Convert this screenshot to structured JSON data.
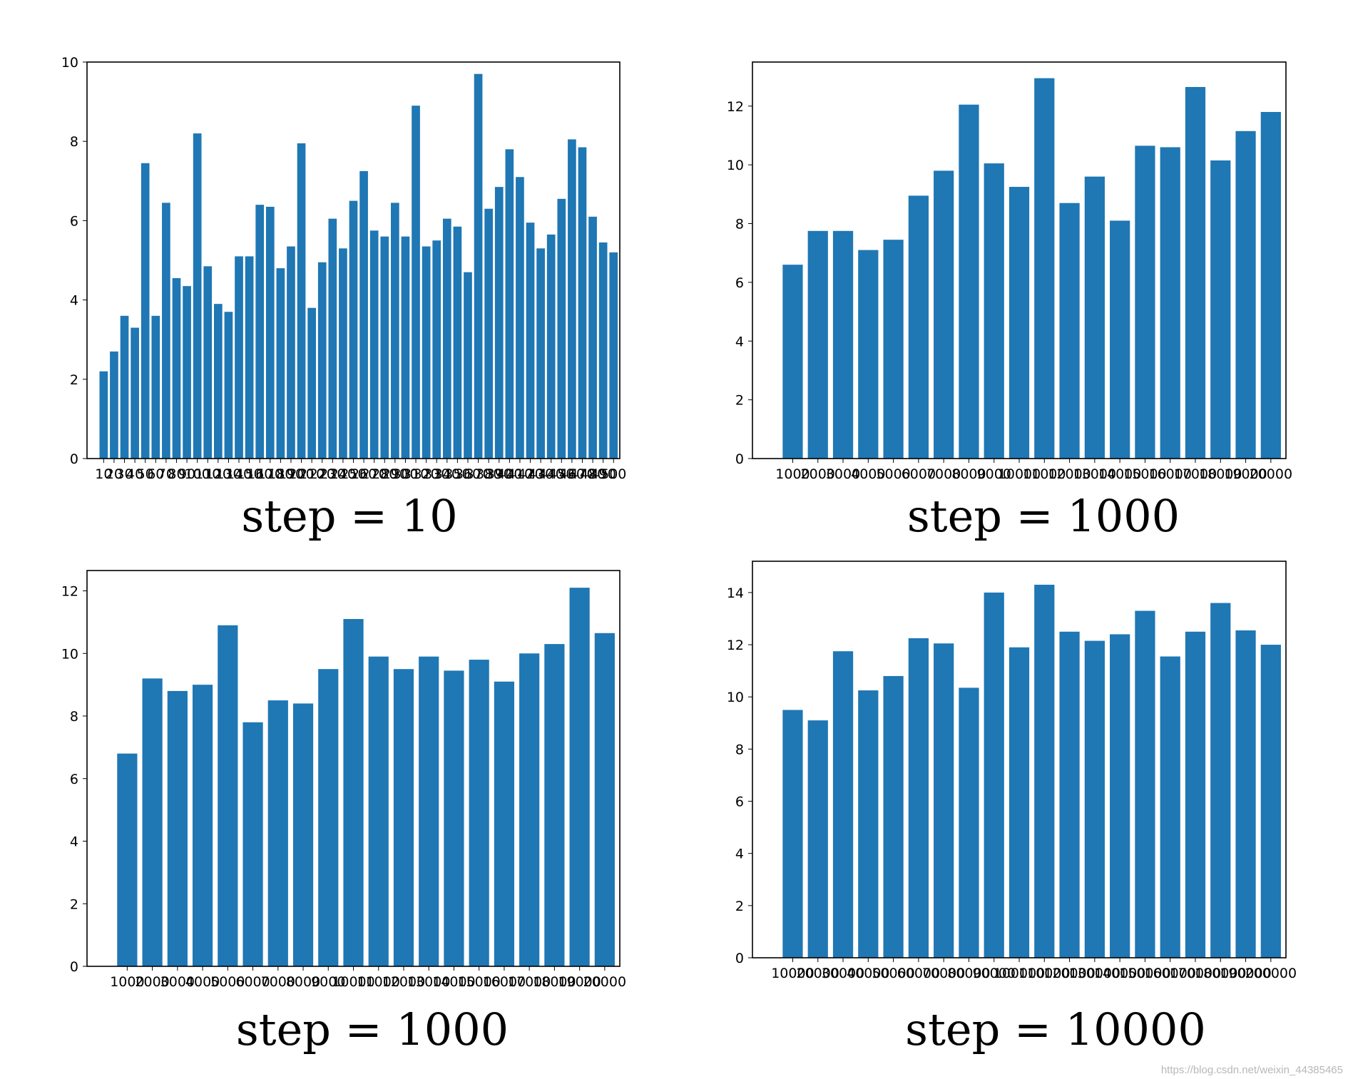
{
  "bar_color": "#1f77b4",
  "watermark": "https://blog.csdn.net/weixin_44385465",
  "chart_data": [
    {
      "type": "bar",
      "caption": "step = 10",
      "ylim": [
        0,
        10
      ],
      "yticks": [
        0,
        2,
        4,
        6,
        8,
        10
      ],
      "categories": [
        "10",
        "20",
        "30",
        "40",
        "50",
        "60",
        "70",
        "80",
        "90",
        "100",
        "110",
        "120",
        "130",
        "140",
        "150",
        "160",
        "170",
        "180",
        "190",
        "200",
        "210",
        "220",
        "230",
        "240",
        "250",
        "260",
        "270",
        "280",
        "290",
        "300",
        "310",
        "320",
        "330",
        "340",
        "350",
        "360",
        "370",
        "380",
        "390",
        "400",
        "410",
        "420",
        "430",
        "440",
        "450",
        "460",
        "470",
        "480",
        "490",
        "500"
      ],
      "values": [
        2.2,
        2.7,
        3.6,
        3.3,
        7.45,
        3.6,
        6.45,
        4.55,
        4.35,
        8.2,
        4.85,
        3.9,
        3.7,
        5.1,
        5.1,
        6.4,
        6.35,
        4.8,
        5.35,
        7.95,
        3.8,
        4.95,
        6.05,
        5.3,
        6.5,
        7.25,
        5.75,
        5.6,
        6.45,
        5.6,
        8.9,
        5.35,
        5.5,
        6.05,
        5.85,
        4.7,
        9.7,
        6.3,
        6.85,
        7.8,
        7.1,
        5.95,
        5.3,
        5.65,
        6.55,
        8.05,
        7.85,
        6.1,
        5.45,
        5.2
      ]
    },
    {
      "type": "bar",
      "caption": "step = 1000",
      "ylim": [
        0,
        13.5
      ],
      "yticks": [
        0,
        2,
        4,
        6,
        8,
        10,
        12
      ],
      "categories": [
        "1000",
        "2000",
        "3000",
        "4000",
        "5000",
        "6000",
        "7000",
        "8000",
        "9000",
        "10000",
        "11000",
        "12000",
        "13000",
        "14000",
        "15000",
        "16000",
        "17000",
        "18000",
        "19000",
        "20000"
      ],
      "values": [
        6.6,
        7.75,
        7.75,
        7.1,
        7.45,
        8.95,
        9.8,
        12.05,
        10.05,
        9.25,
        12.95,
        8.7,
        9.6,
        8.1,
        10.65,
        10.6,
        12.65,
        10.15,
        11.15,
        11.8
      ]
    },
    {
      "type": "bar",
      "caption": "step = 1000",
      "ylim": [
        0,
        12.65
      ],
      "yticks": [
        0,
        2,
        4,
        6,
        8,
        10,
        12
      ],
      "categories": [
        "1000",
        "2000",
        "3000",
        "4000",
        "5000",
        "6000",
        "7000",
        "8000",
        "9000",
        "10000",
        "11000",
        "12000",
        "13000",
        "14000",
        "15000",
        "16000",
        "17000",
        "18000",
        "19000",
        "20000"
      ],
      "values": [
        6.8,
        9.2,
        8.8,
        9.0,
        10.9,
        7.8,
        8.5,
        8.4,
        9.5,
        11.1,
        9.9,
        9.5,
        9.9,
        9.45,
        9.8,
        9.1,
        10.0,
        10.3,
        12.1,
        10.65
      ]
    },
    {
      "type": "bar",
      "caption": "step = 10000",
      "ylim": [
        0,
        15.2
      ],
      "yticks": [
        0,
        2,
        4,
        6,
        8,
        10,
        12,
        14
      ],
      "categories": [
        "10000",
        "20000",
        "30000",
        "40000",
        "50000",
        "60000",
        "70000",
        "80000",
        "90000",
        "100000",
        "110000",
        "120000",
        "130000",
        "140000",
        "150000",
        "160000",
        "170000",
        "180000",
        "190000",
        "200000"
      ],
      "values": [
        9.5,
        9.1,
        11.75,
        10.25,
        10.8,
        12.25,
        12.05,
        10.35,
        14.0,
        11.9,
        14.3,
        12.5,
        12.15,
        12.4,
        13.3,
        11.55,
        12.5,
        13.6,
        12.55,
        12.0
      ]
    }
  ]
}
